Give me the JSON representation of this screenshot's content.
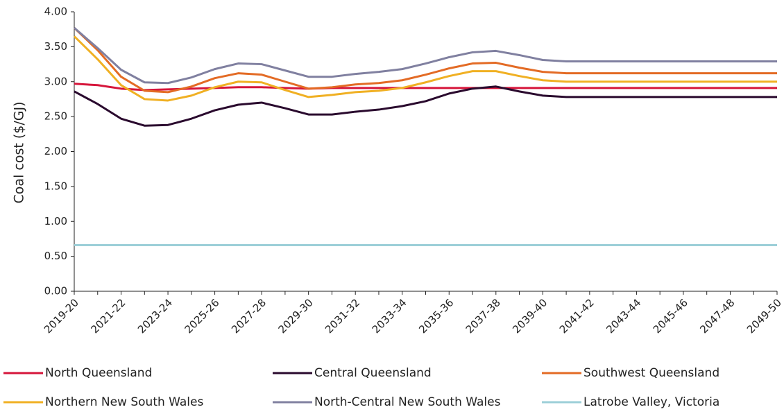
{
  "chart_data": {
    "type": "line",
    "ylabel": "Coal cost ($/GJ)",
    "categories": [
      "2019-20",
      null,
      "2021-22",
      null,
      "2023-24",
      null,
      "2025-26",
      null,
      "2027-28",
      null,
      "2029-30",
      null,
      "2031-32",
      null,
      "2033-34",
      null,
      "2035-36",
      null,
      "2037-38",
      null,
      "2039-40",
      null,
      "2041-42",
      null,
      "2043-44",
      null,
      "2045-46",
      null,
      "2047-48",
      null,
      "2049-50"
    ],
    "series": [
      {
        "name": "North Queensland",
        "color": "#d6163b",
        "values": [
          2.97,
          2.95,
          2.9,
          2.88,
          2.89,
          2.9,
          2.91,
          2.92,
          2.92,
          2.91,
          2.9,
          2.91,
          2.91,
          2.91,
          2.91,
          2.91,
          2.91,
          2.91,
          2.91,
          2.91,
          2.91,
          2.91,
          2.91,
          2.91,
          2.91,
          2.91,
          2.91,
          2.91,
          2.91,
          2.91,
          2.91
        ]
      },
      {
        "name": "Central Queensland",
        "color": "#2a0a2e",
        "values": [
          2.86,
          2.68,
          2.47,
          2.37,
          2.38,
          2.47,
          2.59,
          2.67,
          2.7,
          2.62,
          2.53,
          2.53,
          2.57,
          2.6,
          2.65,
          2.72,
          2.83,
          2.9,
          2.93,
          2.86,
          2.8,
          2.78,
          2.78,
          2.78,
          2.78,
          2.78,
          2.78,
          2.78,
          2.78,
          2.78,
          2.78
        ]
      },
      {
        "name": "Southwest Queensland",
        "color": "#e36b25",
        "values": [
          3.77,
          3.45,
          3.07,
          2.87,
          2.85,
          2.93,
          3.05,
          3.12,
          3.1,
          3.0,
          2.9,
          2.92,
          2.96,
          2.98,
          3.02,
          3.1,
          3.19,
          3.26,
          3.27,
          3.2,
          3.14,
          3.12,
          3.12,
          3.12,
          3.12,
          3.12,
          3.12,
          3.12,
          3.12,
          3.12,
          3.12
        ]
      },
      {
        "name": "Northern New South Wales",
        "color": "#f0b023",
        "values": [
          3.65,
          3.32,
          2.95,
          2.75,
          2.73,
          2.8,
          2.92,
          3.0,
          2.99,
          2.88,
          2.78,
          2.81,
          2.85,
          2.87,
          2.91,
          2.99,
          3.08,
          3.15,
          3.15,
          3.08,
          3.02,
          3.0,
          3.0,
          3.0,
          3.0,
          3.0,
          3.0,
          3.0,
          3.0,
          3.0,
          3.0
        ]
      },
      {
        "name": "North-Central New South Wales",
        "color": "#8080a0",
        "values": [
          3.77,
          3.48,
          3.17,
          2.99,
          2.98,
          3.06,
          3.18,
          3.26,
          3.25,
          3.16,
          3.07,
          3.07,
          3.11,
          3.14,
          3.18,
          3.26,
          3.35,
          3.42,
          3.44,
          3.38,
          3.31,
          3.29,
          3.29,
          3.29,
          3.29,
          3.29,
          3.29,
          3.29,
          3.29,
          3.29,
          3.29
        ]
      },
      {
        "name": "Latrobe Valley, Victoria",
        "color": "#9ccfd8",
        "values": [
          0.66,
          0.66,
          0.66,
          0.66,
          0.66,
          0.66,
          0.66,
          0.66,
          0.66,
          0.66,
          0.66,
          0.66,
          0.66,
          0.66,
          0.66,
          0.66,
          0.66,
          0.66,
          0.66,
          0.66,
          0.66,
          0.66,
          0.66,
          0.66,
          0.66,
          0.66,
          0.66,
          0.66,
          0.66,
          0.66,
          0.66
        ]
      }
    ],
    "ylim": [
      0,
      4
    ],
    "yticks": [
      {
        "value": 0,
        "label": "0.00"
      },
      {
        "value": 0.5,
        "label": "0.50"
      },
      {
        "value": 1,
        "label": "1.00"
      },
      {
        "value": 1.5,
        "label": "1.50"
      },
      {
        "value": 2,
        "label": "2.00"
      },
      {
        "value": 2.5,
        "label": "2.50"
      },
      {
        "value": 3,
        "label": "3.00"
      },
      {
        "value": 3.5,
        "label": "3.50"
      },
      {
        "value": 4,
        "label": "4.00"
      }
    ],
    "grid": false
  }
}
